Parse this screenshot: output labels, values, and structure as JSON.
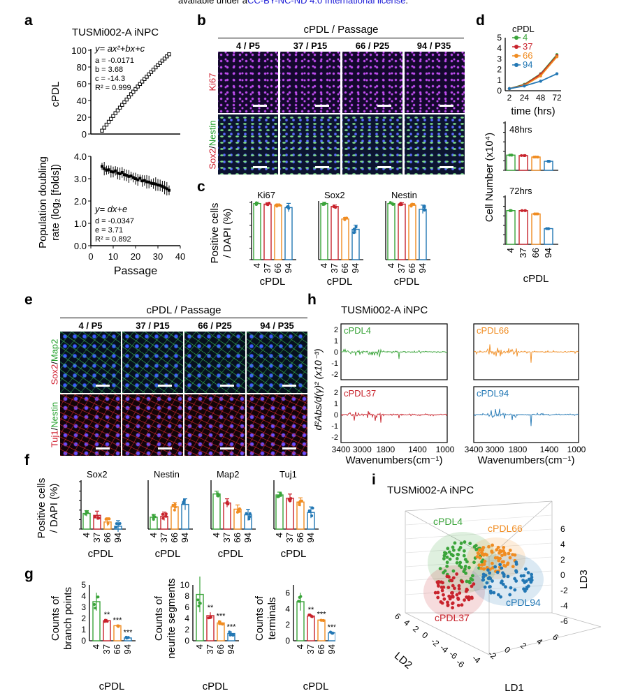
{
  "header": {
    "prefix": "available under a",
    "link": "CC-BY-NC-ND 4.0 International license",
    "suffix": "."
  },
  "colors": {
    "g": "#3aa43a",
    "r": "#c8232c",
    "o": "#f08c21",
    "b": "#2277b4",
    "magenta": "#d01c8b",
    "green_label": "#22a02a",
    "red_label": "#d02030",
    "link": "#1a1ad6"
  },
  "panels": {
    "a": "a",
    "b": "b",
    "c": "c",
    "d": "d",
    "e": "e",
    "f": "f",
    "g": "g",
    "h": "h",
    "i": "i"
  },
  "panel_a": {
    "title": "TUSMi002-A iNPC",
    "top_ylabel": "cPDL",
    "top_eq": "y= ax²+bx+c",
    "top_params": [
      "a = -0.0171",
      "b = 3.68",
      "c = -14.3",
      "R² = 0.999"
    ],
    "bottom_ylabel_1": "Population doubling",
    "bottom_ylabel_2": "rate (log₂ [folds])",
    "bottom_eq": "y= dx+e",
    "bottom_params": [
      "d = -0.0347",
      "e = 3.71",
      "R² = 0.892"
    ],
    "xlabel": "Passage",
    "top_yticks": [
      "0",
      "20",
      "40",
      "60",
      "80",
      "100"
    ],
    "bottom_yticks": [
      "0.0",
      "1.0",
      "2.0",
      "3.0",
      "4.0"
    ],
    "xticks": [
      "0",
      "10",
      "20",
      "30",
      "40"
    ]
  },
  "panel_b": {
    "header": "cPDL / Passage",
    "cols": [
      "4 / P5",
      "37 / P15",
      "66 / P25",
      "94 / P35"
    ],
    "row1_label": "Ki67",
    "row2_label_a": "Sox2",
    "row2_label_b": "Nestin"
  },
  "panel_c": {
    "ylabel_1": "Positive cells",
    "ylabel_2": "/ DAPI (%)",
    "titles": [
      "Ki67",
      "Sox2",
      "Nestin"
    ],
    "xlabel": "cPDL",
    "yticks": [
      "0",
      "20",
      "40",
      "60",
      "80",
      "100"
    ],
    "cats": [
      "4",
      "37",
      "66",
      "94"
    ],
    "sig": [
      [
        "",
        "",
        "**",
        "***"
      ],
      [
        "",
        "***",
        "***",
        "***"
      ],
      [
        "",
        "",
        "**",
        "***"
      ]
    ]
  },
  "panel_d": {
    "legend_title": "cPDL",
    "legend": [
      "4",
      "37",
      "66",
      "94"
    ],
    "ylabel": "Cell Number (x10⁴)",
    "time_label": "time (hrs)",
    "time_ticks": [
      "2",
      "24",
      "48",
      "72"
    ],
    "sub1": "48hrs",
    "sub2": "72hrs",
    "yticks": [
      "0",
      "1",
      "2",
      "3",
      "4",
      "5"
    ],
    "cats": [
      "4",
      "37",
      "66",
      "94"
    ],
    "xlabel": "cPDL",
    "sig48": [
      "",
      "",
      "*",
      "***"
    ],
    "sig72": [
      "",
      "",
      "*",
      "***"
    ]
  },
  "panel_e": {
    "header": "cPDL / Passage",
    "cols": [
      "4 / P5",
      "37 / P15",
      "66 / P25",
      "94 / P35"
    ],
    "row1_label_a": "Sox2",
    "row1_label_b": "Map2",
    "row2_label_a": "Tuj1",
    "row2_label_b": "Nestin"
  },
  "panel_f": {
    "ylabel_1": "Positive cells",
    "ylabel_2": "/ DAPI (%)",
    "titles": [
      "Sox2",
      "Nestin",
      "Map2",
      "Tuj1"
    ],
    "xlabel": "cPDL",
    "yticks": [
      "0",
      "20",
      "40",
      "60",
      "80",
      "100"
    ],
    "cats": [
      "4",
      "37",
      "66",
      "94"
    ],
    "sig": [
      [
        "",
        "",
        "***",
        "***"
      ],
      [
        "",
        "",
        "***",
        "**"
      ],
      [
        "",
        "*",
        "***",
        "***"
      ],
      [
        "",
        "*",
        "**",
        "***"
      ]
    ]
  },
  "panel_g": {
    "ylabels": [
      [
        "Counts of",
        "branch points"
      ],
      [
        "Counts of",
        "neurite segments"
      ],
      [
        "Counts of",
        "terminals"
      ]
    ],
    "yticks": [
      [
        "0",
        "1",
        "2",
        "3",
        "4",
        "5"
      ],
      [
        "0",
        "2",
        "4",
        "6",
        "8",
        "10"
      ],
      [
        "0",
        "2",
        "4",
        "6"
      ]
    ],
    "cats": [
      "4",
      "37",
      "66",
      "94"
    ],
    "xlabel": "cPDL",
    "sig": [
      [
        "",
        "**",
        "***",
        "***"
      ],
      [
        "",
        "**",
        "***",
        "***"
      ],
      [
        "",
        "**",
        "***",
        "***"
      ]
    ]
  },
  "panel_h": {
    "title": "TUSMi002-A iNPC",
    "labels": [
      "cPDL4",
      "cPDL66",
      "cPDL37",
      "cPDL94"
    ],
    "ylabel": "d²Abs/d(γ)² (x10⁻³)",
    "xlabel": "Wavenumbers(cm⁻¹)",
    "xticks": [
      "3400",
      "3000",
      "1800",
      "1400",
      "1000"
    ],
    "yticks": [
      "-2",
      "-1",
      "0",
      "1",
      "2"
    ]
  },
  "panel_i": {
    "title": "TUSMi002-A iNPC",
    "labels": [
      "cPDL4",
      "cPDL66",
      "cPDL37",
      "cPDL94"
    ],
    "ld1": "LD1",
    "ld2": "LD2",
    "ld3": "LD3",
    "ld3_ticks": [
      "6",
      "4",
      "2",
      "0",
      "-2",
      "-4",
      "-6"
    ],
    "ld1_ticks": [
      "-6",
      "-4",
      "-2",
      "0",
      "2",
      "4",
      "6"
    ],
    "ld2_ticks": [
      "6",
      "4",
      "2",
      "0",
      "-2",
      "-4",
      "-6"
    ]
  },
  "chart_data": [
    {
      "type": "scatter",
      "panel": "a-top",
      "x": [
        5,
        6,
        7,
        8,
        9,
        10,
        11,
        12,
        13,
        14,
        15,
        16,
        17,
        18,
        19,
        20,
        21,
        22,
        23,
        24,
        25,
        26,
        27,
        28,
        29,
        30,
        31,
        32,
        33,
        34,
        35
      ],
      "y": [
        4,
        7.6,
        11.2,
        14.6,
        18.1,
        21.5,
        24.9,
        28.2,
        31.5,
        34.8,
        38,
        41.2,
        44.4,
        47.5,
        50.6,
        53.7,
        56.7,
        59.7,
        62.6,
        65.6,
        68.4,
        71.3,
        74.1,
        76.9,
        79.6,
        82.3,
        84.9,
        87.6,
        90.1,
        92.7,
        95.2
      ],
      "xlim": [
        0,
        40
      ],
      "ylim": [
        0,
        100
      ]
    },
    {
      "type": "scatter",
      "panel": "a-bottom",
      "x": [
        5,
        6,
        7,
        8,
        9,
        10,
        11,
        12,
        13,
        14,
        15,
        16,
        17,
        18,
        19,
        20,
        21,
        22,
        23,
        24,
        25,
        26,
        27,
        28,
        29,
        30,
        31,
        32,
        33,
        34,
        35
      ],
      "y": [
        3.55,
        3.45,
        3.38,
        3.4,
        3.32,
        3.3,
        3.35,
        3.25,
        3.22,
        3.28,
        3.18,
        3.15,
        3.1,
        3.12,
        3.05,
        3.0,
        2.95,
        3.02,
        2.9,
        2.92,
        2.86,
        2.85,
        2.8,
        2.78,
        2.76,
        2.72,
        2.7,
        2.66,
        2.6,
        2.55,
        2.48
      ],
      "xlim": [
        0,
        40
      ],
      "ylim": [
        0,
        4
      ]
    },
    {
      "type": "bar",
      "panel": "c-Ki67",
      "categories": [
        "4",
        "37",
        "66",
        "94"
      ],
      "values": [
        98,
        97,
        95,
        91
      ],
      "ylim": [
        0,
        100
      ]
    },
    {
      "type": "bar",
      "panel": "c-Sox2",
      "categories": [
        "4",
        "37",
        "66",
        "94"
      ],
      "values": [
        98,
        93,
        71,
        53
      ],
      "ylim": [
        0,
        100
      ]
    },
    {
      "type": "bar",
      "panel": "c-Nestin",
      "categories": [
        "4",
        "37",
        "66",
        "94"
      ],
      "values": [
        98,
        97,
        95,
        88
      ],
      "ylim": [
        0,
        100
      ]
    },
    {
      "type": "line",
      "panel": "d-growth",
      "x": [
        2,
        24,
        48,
        72
      ],
      "series": [
        {
          "name": "4",
          "values": [
            0.2,
            0.6,
            1.6,
            3.4
          ]
        },
        {
          "name": "37",
          "values": [
            0.2,
            0.55,
            1.55,
            3.3
          ]
        },
        {
          "name": "66",
          "values": [
            0.2,
            0.5,
            1.4,
            3.2
          ]
        },
        {
          "name": "94",
          "values": [
            0.2,
            0.45,
            0.9,
            1.6
          ]
        }
      ],
      "ylim": [
        0,
        5
      ]
    },
    {
      "type": "bar",
      "panel": "d-48hrs",
      "categories": [
        "4",
        "37",
        "66",
        "94"
      ],
      "values": [
        1.6,
        1.55,
        1.4,
        0.95
      ],
      "ylim": [
        0,
        5
      ]
    },
    {
      "type": "bar",
      "panel": "d-72hrs",
      "categories": [
        "4",
        "37",
        "66",
        "94"
      ],
      "values": [
        3.55,
        3.55,
        3.2,
        1.65
      ],
      "ylim": [
        0,
        5
      ]
    },
    {
      "type": "bar",
      "panel": "f-Sox2",
      "categories": [
        "4",
        "37",
        "66",
        "94"
      ],
      "values": [
        33,
        29,
        15,
        6
      ],
      "ylim": [
        0,
        100
      ]
    },
    {
      "type": "bar",
      "panel": "f-Nestin",
      "categories": [
        "4",
        "37",
        "66",
        "94"
      ],
      "values": [
        25,
        27,
        47,
        52
      ],
      "ylim": [
        0,
        100
      ]
    },
    {
      "type": "bar",
      "panel": "f-Map2",
      "categories": [
        "4",
        "37",
        "66",
        "94"
      ],
      "values": [
        74,
        55,
        42,
        30
      ],
      "ylim": [
        0,
        100
      ]
    },
    {
      "type": "bar",
      "panel": "f-Tuj1",
      "categories": [
        "4",
        "37",
        "66",
        "94"
      ],
      "values": [
        72,
        65,
        57,
        35
      ],
      "ylim": [
        0,
        100
      ]
    },
    {
      "type": "bar",
      "panel": "g-branch",
      "categories": [
        "4",
        "37",
        "66",
        "94"
      ],
      "values": [
        3.5,
        1.8,
        1.35,
        0.25
      ],
      "ylim": [
        0,
        5
      ]
    },
    {
      "type": "bar",
      "panel": "g-segments",
      "categories": [
        "4",
        "37",
        "66",
        "94"
      ],
      "values": [
        8.3,
        4.5,
        3.2,
        1.3
      ],
      "ylim": [
        0,
        10
      ]
    },
    {
      "type": "bar",
      "panel": "g-terminals",
      "categories": [
        "4",
        "37",
        "66",
        "94"
      ],
      "values": [
        4.9,
        3.1,
        2.6,
        1.0
      ],
      "ylim": [
        0,
        7
      ]
    }
  ]
}
